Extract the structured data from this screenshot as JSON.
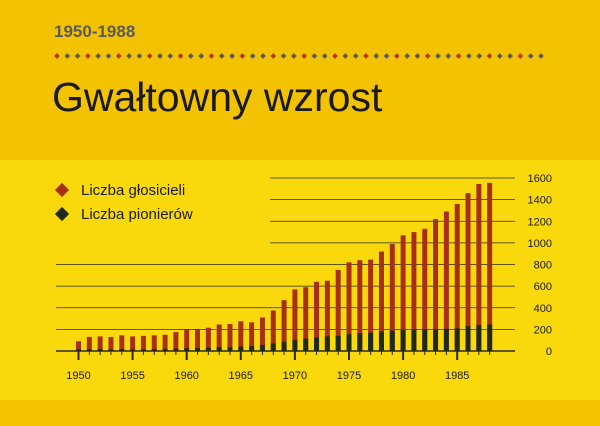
{
  "header": {
    "year_range": "1950-1988",
    "title": "Gwałtowny wzrost"
  },
  "colors": {
    "publishers": "#a82e14",
    "pioneers": "#202a1c",
    "gridline": "#2a2a2a",
    "dot_primary": "#b23a1a",
    "dot_secondary": "#5a5a5a"
  },
  "chart_data": {
    "type": "bar",
    "stacked": "overlay",
    "title": "",
    "xlabel": "",
    "ylabel": "",
    "x": [
      1950,
      1951,
      1952,
      1953,
      1954,
      1955,
      1956,
      1957,
      1958,
      1959,
      1960,
      1961,
      1962,
      1963,
      1964,
      1965,
      1966,
      1967,
      1968,
      1969,
      1970,
      1971,
      1972,
      1973,
      1974,
      1975,
      1976,
      1977,
      1978,
      1979,
      1980,
      1981,
      1982,
      1983,
      1984,
      1985,
      1986,
      1987,
      1988
    ],
    "x_ticks": [
      "1950",
      "1955",
      "1960",
      "1965",
      "1970",
      "1975",
      "1980",
      "1985"
    ],
    "y_ticks": [
      "0",
      "200",
      "400",
      "600",
      "800",
      "1000",
      "1200",
      "1400",
      "1600"
    ],
    "ylim": [
      0,
      1600
    ],
    "grid": true,
    "y_axis_position": "right",
    "legend_position": "top-left",
    "series": [
      {
        "name": "Liczba głosicieli",
        "values": [
          90,
          130,
          135,
          130,
          145,
          135,
          140,
          145,
          150,
          175,
          200,
          200,
          215,
          245,
          250,
          275,
          265,
          310,
          375,
          470,
          570,
          590,
          640,
          650,
          750,
          820,
          840,
          845,
          920,
          990,
          1070,
          1100,
          1130,
          1220,
          1290,
          1360,
          1460,
          1545,
          1555
        ]
      },
      {
        "name": "Liczba pionierów",
        "values": [
          15,
          15,
          18,
          15,
          18,
          15,
          15,
          18,
          20,
          22,
          25,
          28,
          30,
          35,
          35,
          40,
          45,
          55,
          70,
          85,
          100,
          115,
          125,
          135,
          140,
          155,
          165,
          170,
          180,
          190,
          195,
          200,
          200,
          200,
          205,
          210,
          230,
          240,
          245
        ]
      }
    ]
  }
}
